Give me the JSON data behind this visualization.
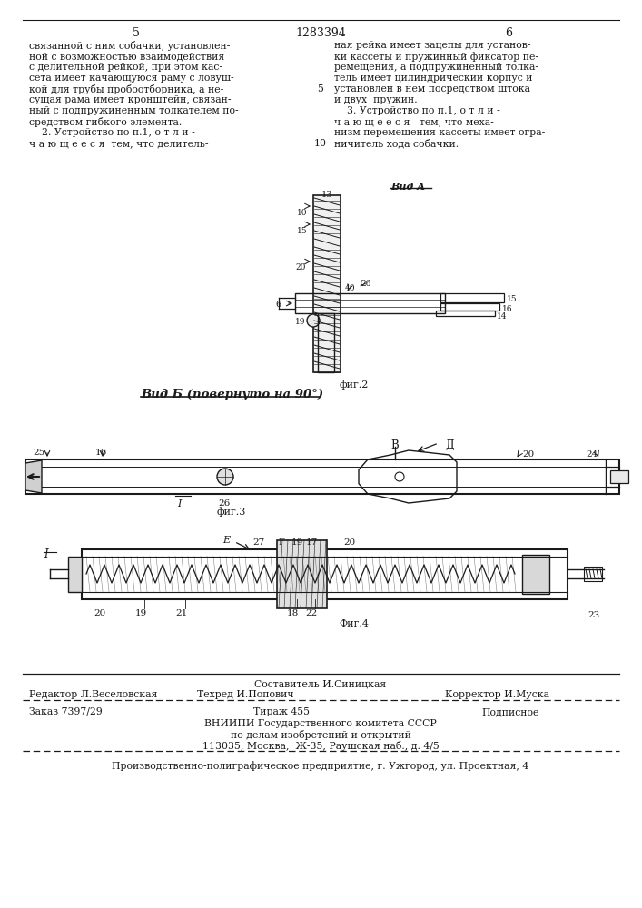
{
  "page_number_left": "5",
  "page_number_center": "1283394",
  "page_number_right": "6",
  "col_left_text": [
    "связанной с ним собачки, установлен-",
    "ной с возможностью взаимодействия",
    "с делительной рейкой, при этом кас-",
    "сета имеет качающуюся раму с ловуш-",
    "кой для трубы пробоотборника, а не-",
    "сущая рама имеет кронштейн, связан-",
    "ный с подпружиненным толкателем по-",
    "средством гибкого элемента.",
    "    2. Устройство по п.1, о т л и -",
    "ч а ю щ е е с я  тем, что делитель-"
  ],
  "col_right_text": [
    "ная рейка имеет зацепы для установ-",
    "ки кассеты и пружинный фиксатор пе-",
    "ремещения, а подпружиненный толка-",
    "тель имеет цилиндрический корпус и",
    "установлен в нем посредством штока",
    "и двух  пружин.",
    "    3. Устройство по п.1, о т л и -",
    "ч а ю щ е е с я   тем, что меха-",
    "низм перемещения кассеты имеет огра-",
    "ничитель хода собачки."
  ],
  "view_a_label": "Вид А",
  "fig2_label": "фиг.2",
  "view_b_label": "Вид Б (повернуто на 90°)",
  "fig3_label": "фиг.3",
  "fig4_label": "Фиг.4",
  "footer_sestavitel": "Составитель И.Синицкая",
  "footer_redaktor": "Редактор Л.Веселовская",
  "footer_tehred": "Техред И.Попович",
  "footer_korrektor": "Корректор И.Муска",
  "footer_order": "Заказ 7397/29",
  "footer_tirazh": "Тираж 455",
  "footer_podpisnoe": "Подписное",
  "footer_vniipи": "ВНИИПИ Государственного комитета СССР",
  "footer_izobr": "по делам изобретений и открытий",
  "footer_addr": "113035, Москва,  Ж-35, Раушская наб., д. 4/5",
  "footer_poligraf": "Производственно-полиграфическое предприятие, г. Ужгород, ул. Проектная, 4",
  "bg_color": "#ffffff",
  "text_color": "#1a1a1a",
  "line_color": "#1a1a1a"
}
